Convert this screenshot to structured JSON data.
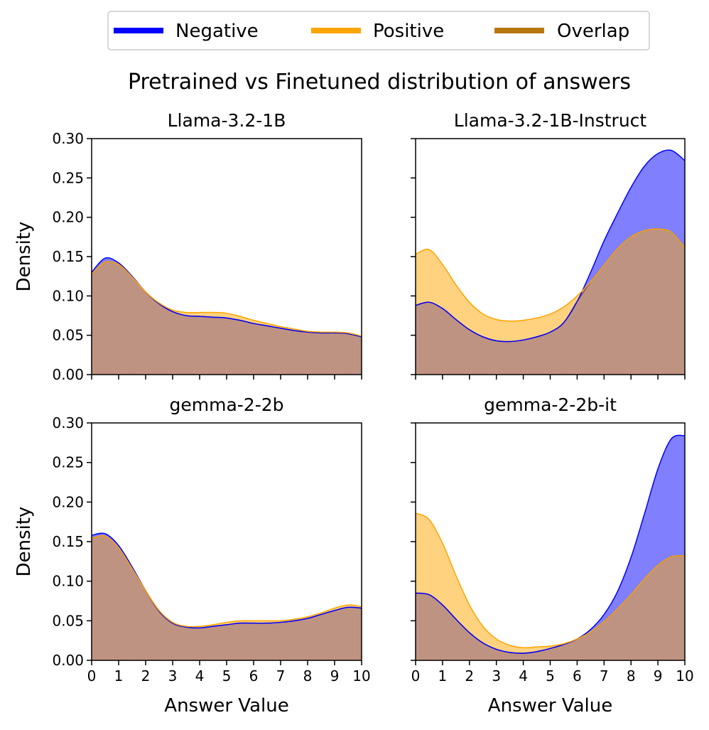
{
  "figure": {
    "title": "Pretrained vs Finetuned distribution of answers",
    "legend": [
      {
        "label": "Negative",
        "color": "#0000ff"
      },
      {
        "label": "Positive",
        "color": "#ffa500"
      },
      {
        "label": "Overlap",
        "color": "#b8760f"
      }
    ]
  },
  "colors": {
    "negative_line": "#0000ff",
    "negative_fill": "#8080ff",
    "positive_line": "#ffa500",
    "positive_fill": "#ffd280",
    "overlap_fill": "#bf9381",
    "overlap_line": "#7a4a6a"
  },
  "chart_data": [
    {
      "type": "area",
      "title": "Llama-3.2-1B",
      "xlabel": "",
      "ylabel": "Density",
      "xlim": [
        0,
        10
      ],
      "ylim": [
        0,
        0.3
      ],
      "xticks": [
        "0",
        "1",
        "2",
        "3",
        "4",
        "5",
        "6",
        "7",
        "8",
        "9",
        "10"
      ],
      "yticks": [
        "0.00",
        "0.05",
        "0.10",
        "0.15",
        "0.20",
        "0.25",
        "0.30"
      ],
      "show_xtick_labels": false,
      "show_ytick_labels": true,
      "x": [
        0,
        0.5,
        1,
        1.5,
        2,
        2.5,
        3,
        3.5,
        4,
        4.5,
        5,
        5.5,
        6,
        6.5,
        7,
        7.5,
        8,
        8.5,
        9,
        9.5,
        10
      ],
      "series": [
        {
          "name": "Negative",
          "values": [
            0.13,
            0.148,
            0.142,
            0.125,
            0.105,
            0.09,
            0.08,
            0.075,
            0.074,
            0.073,
            0.072,
            0.069,
            0.065,
            0.062,
            0.059,
            0.056,
            0.054,
            0.053,
            0.053,
            0.052,
            0.048
          ]
        },
        {
          "name": "Positive",
          "values": [
            0.128,
            0.143,
            0.14,
            0.124,
            0.105,
            0.091,
            0.082,
            0.079,
            0.079,
            0.079,
            0.078,
            0.074,
            0.069,
            0.065,
            0.061,
            0.058,
            0.055,
            0.054,
            0.054,
            0.053,
            0.049
          ]
        }
      ]
    },
    {
      "type": "area",
      "title": "Llama-3.2-1B-Instruct",
      "xlabel": "",
      "ylabel": "",
      "xlim": [
        0,
        10
      ],
      "ylim": [
        0,
        0.3
      ],
      "xticks": [
        "0",
        "1",
        "2",
        "3",
        "4",
        "5",
        "6",
        "7",
        "8",
        "9",
        "10"
      ],
      "yticks": [
        "0.00",
        "0.05",
        "0.10",
        "0.15",
        "0.20",
        "0.25",
        "0.30"
      ],
      "show_xtick_labels": false,
      "show_ytick_labels": false,
      "x": [
        0,
        0.5,
        1,
        1.5,
        2,
        2.5,
        3,
        3.5,
        4,
        4.5,
        5,
        5.5,
        6,
        6.5,
        7,
        7.5,
        8,
        8.5,
        9,
        9.5,
        10
      ],
      "series": [
        {
          "name": "Negative",
          "values": [
            0.088,
            0.092,
            0.084,
            0.07,
            0.057,
            0.048,
            0.043,
            0.042,
            0.044,
            0.048,
            0.054,
            0.066,
            0.093,
            0.13,
            0.17,
            0.205,
            0.238,
            0.265,
            0.281,
            0.285,
            0.272
          ]
        },
        {
          "name": "Positive",
          "values": [
            0.153,
            0.159,
            0.14,
            0.114,
            0.092,
            0.077,
            0.07,
            0.068,
            0.069,
            0.072,
            0.077,
            0.086,
            0.1,
            0.118,
            0.139,
            0.16,
            0.175,
            0.183,
            0.185,
            0.181,
            0.161
          ]
        }
      ]
    },
    {
      "type": "area",
      "title": "gemma-2-2b",
      "xlabel": "Answer Value",
      "ylabel": "Density",
      "xlim": [
        0,
        10
      ],
      "ylim": [
        0,
        0.3
      ],
      "xticks": [
        "0",
        "1",
        "2",
        "3",
        "4",
        "5",
        "6",
        "7",
        "8",
        "9",
        "10"
      ],
      "yticks": [
        "0.00",
        "0.05",
        "0.10",
        "0.15",
        "0.20",
        "0.25",
        "0.30"
      ],
      "show_xtick_labels": true,
      "show_ytick_labels": true,
      "x": [
        0,
        0.5,
        1,
        1.5,
        2,
        2.5,
        3,
        3.5,
        4,
        4.5,
        5,
        5.5,
        6,
        6.5,
        7,
        7.5,
        8,
        8.5,
        9,
        9.5,
        10
      ],
      "series": [
        {
          "name": "Negative",
          "values": [
            0.158,
            0.16,
            0.145,
            0.118,
            0.088,
            0.062,
            0.047,
            0.042,
            0.041,
            0.043,
            0.045,
            0.047,
            0.047,
            0.047,
            0.048,
            0.05,
            0.053,
            0.058,
            0.063,
            0.067,
            0.066
          ]
        },
        {
          "name": "Positive",
          "values": [
            0.154,
            0.157,
            0.142,
            0.116,
            0.088,
            0.063,
            0.048,
            0.043,
            0.043,
            0.045,
            0.048,
            0.05,
            0.05,
            0.05,
            0.05,
            0.052,
            0.055,
            0.06,
            0.066,
            0.07,
            0.068
          ]
        }
      ]
    },
    {
      "type": "area",
      "title": "gemma-2-2b-it",
      "xlabel": "Answer Value",
      "ylabel": "",
      "xlim": [
        0,
        10
      ],
      "ylim": [
        0,
        0.3
      ],
      "xticks": [
        "0",
        "1",
        "2",
        "3",
        "4",
        "5",
        "6",
        "7",
        "8",
        "9",
        "10"
      ],
      "yticks": [
        "0.00",
        "0.05",
        "0.10",
        "0.15",
        "0.20",
        "0.25",
        "0.30"
      ],
      "show_xtick_labels": true,
      "show_ytick_labels": false,
      "x": [
        0,
        0.5,
        1,
        1.5,
        2,
        2.5,
        3,
        3.5,
        4,
        4.5,
        5,
        5.5,
        6,
        6.5,
        7,
        7.5,
        8,
        8.5,
        9,
        9.5,
        10
      ],
      "series": [
        {
          "name": "Negative",
          "values": [
            0.085,
            0.083,
            0.07,
            0.052,
            0.035,
            0.022,
            0.014,
            0.01,
            0.009,
            0.011,
            0.015,
            0.02,
            0.027,
            0.039,
            0.058,
            0.087,
            0.13,
            0.185,
            0.242,
            0.28,
            0.284
          ]
        },
        {
          "name": "Positive",
          "values": [
            0.186,
            0.178,
            0.148,
            0.107,
            0.07,
            0.043,
            0.027,
            0.019,
            0.016,
            0.017,
            0.018,
            0.021,
            0.027,
            0.036,
            0.049,
            0.065,
            0.083,
            0.103,
            0.12,
            0.131,
            0.132
          ]
        }
      ]
    }
  ]
}
